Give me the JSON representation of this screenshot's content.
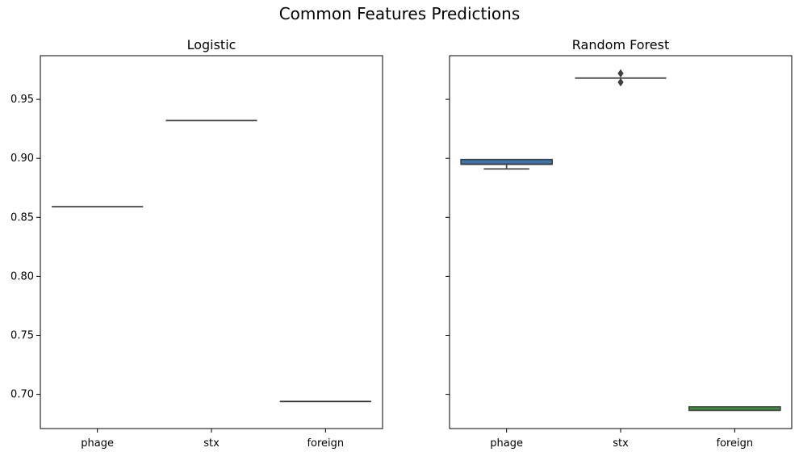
{
  "suptitle": "Common Features Predictions",
  "chart_data": [
    {
      "type": "boxplot",
      "title": "Logistic",
      "categories": [
        "phage",
        "stx",
        "foreign"
      ],
      "boxes": [
        {
          "category": "phage",
          "q1": 0.859,
          "median": 0.859,
          "q3": 0.859,
          "whisker_low": 0.859,
          "whisker_high": 0.859,
          "outliers": [],
          "color": "#3a75af"
        },
        {
          "category": "stx",
          "q1": 0.932,
          "median": 0.932,
          "q3": 0.932,
          "whisker_low": 0.932,
          "whisker_high": 0.932,
          "outliers": [],
          "color": "#e1812c"
        },
        {
          "category": "foreign",
          "q1": 0.694,
          "median": 0.694,
          "q3": 0.694,
          "whisker_low": 0.694,
          "whisker_high": 0.694,
          "outliers": [],
          "color": "#3a923a"
        }
      ],
      "ylim": [
        0.671,
        0.987
      ],
      "yticks": [
        0.7,
        0.75,
        0.8,
        0.85,
        0.9,
        0.95
      ],
      "ytick_labels": [
        "0.70",
        "0.75",
        "0.80",
        "0.85",
        "0.90",
        "0.95"
      ],
      "show_ytick_labels": true,
      "grid": false
    },
    {
      "type": "boxplot",
      "title": "Random Forest",
      "categories": [
        "phage",
        "stx",
        "foreign"
      ],
      "boxes": [
        {
          "category": "phage",
          "q1": 0.895,
          "median": 0.895,
          "q3": 0.899,
          "whisker_low": 0.891,
          "whisker_high": 0.899,
          "outliers": [],
          "color": "#3a75af"
        },
        {
          "category": "stx",
          "q1": 0.968,
          "median": 0.968,
          "q3": 0.968,
          "whisker_low": 0.968,
          "whisker_high": 0.968,
          "outliers": [
            0.972,
            0.9645
          ],
          "color": "#e1812c"
        },
        {
          "category": "foreign",
          "q1": 0.6865,
          "median": 0.6865,
          "q3": 0.6895,
          "whisker_low": 0.6865,
          "whisker_high": 0.6895,
          "outliers": [],
          "color": "#3a923a"
        }
      ],
      "ylim": [
        0.671,
        0.987
      ],
      "yticks": [
        0.7,
        0.75,
        0.8,
        0.85,
        0.9,
        0.95
      ],
      "ytick_labels": [
        "0.70",
        "0.75",
        "0.80",
        "0.85",
        "0.90",
        "0.95"
      ],
      "show_ytick_labels": false,
      "grid": false
    }
  ]
}
